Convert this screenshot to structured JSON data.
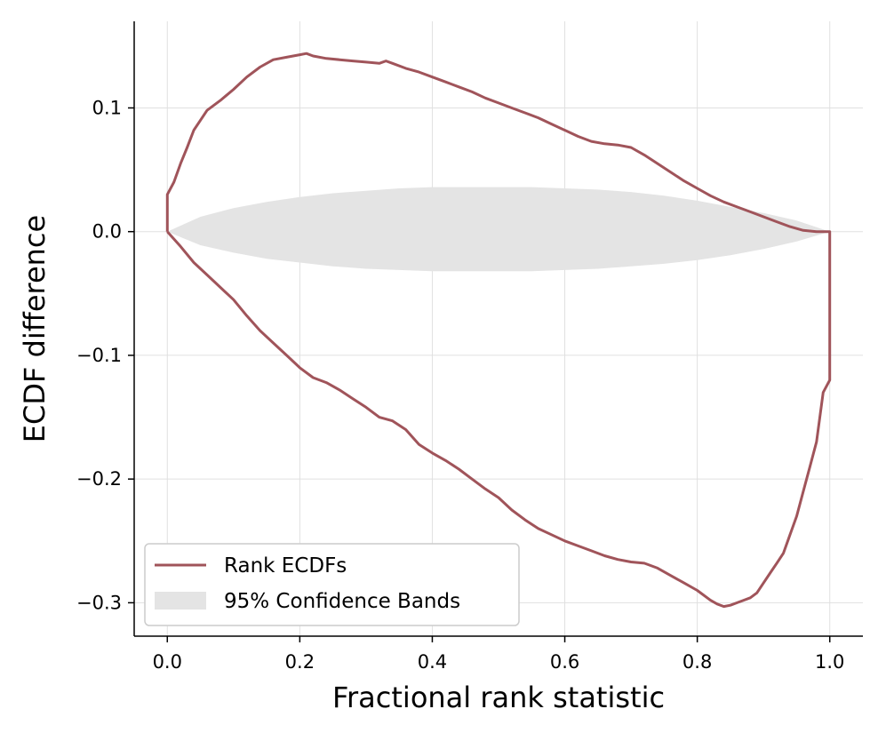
{
  "chart_data": {
    "type": "line",
    "title": "",
    "xlabel": "Fractional rank statistic",
    "ylabel": "ECDF difference",
    "xlim": [
      -0.05,
      1.05
    ],
    "ylim": [
      -0.327,
      0.17
    ],
    "xticks": [
      0.0,
      0.2,
      0.4,
      0.6,
      0.8,
      1.0
    ],
    "xtick_labels": [
      "0.0",
      "0.2",
      "0.4",
      "0.6",
      "0.8",
      "1.0"
    ],
    "yticks": [
      0.1,
      0.0,
      -0.1,
      -0.2,
      -0.3
    ],
    "ytick_labels": [
      "0.1",
      "0.0",
      "−0.1",
      "−0.2",
      "−0.3"
    ],
    "grid": true,
    "legend_position": "lower-left",
    "colors": {
      "line": "#a0545a",
      "band": "#e4e4e4",
      "grid": "#e0e0e0",
      "axis": "#000000"
    },
    "series": [
      {
        "name": "Rank ECDFs",
        "kind": "line",
        "x": [
          0.0,
          0.0,
          0.01,
          0.02,
          0.03,
          0.04,
          0.05,
          0.06,
          0.08,
          0.1,
          0.12,
          0.14,
          0.16,
          0.18,
          0.2,
          0.21,
          0.22,
          0.24,
          0.26,
          0.28,
          0.3,
          0.32,
          0.33,
          0.34,
          0.36,
          0.38,
          0.4,
          0.42,
          0.44,
          0.46,
          0.48,
          0.5,
          0.52,
          0.54,
          0.56,
          0.58,
          0.6,
          0.62,
          0.64,
          0.66,
          0.68,
          0.7,
          0.72,
          0.74,
          0.76,
          0.78,
          0.8,
          0.82,
          0.84,
          0.86,
          0.88,
          0.9,
          0.92,
          0.94,
          0.96,
          0.98,
          1.0,
          1.0,
          0.99,
          0.98,
          0.97,
          0.96,
          0.95,
          0.94,
          0.93,
          0.92,
          0.91,
          0.9,
          0.89,
          0.88,
          0.87,
          0.86,
          0.85,
          0.84,
          0.83,
          0.82,
          0.8,
          0.78,
          0.76,
          0.74,
          0.72,
          0.7,
          0.68,
          0.66,
          0.64,
          0.62,
          0.6,
          0.58,
          0.56,
          0.54,
          0.52,
          0.5,
          0.48,
          0.46,
          0.44,
          0.42,
          0.4,
          0.38,
          0.36,
          0.34,
          0.32,
          0.3,
          0.28,
          0.26,
          0.24,
          0.22,
          0.2,
          0.18,
          0.16,
          0.14,
          0.12,
          0.1,
          0.08,
          0.06,
          0.04,
          0.02,
          0.0
        ],
        "y": [
          0.0,
          0.03,
          0.04,
          0.055,
          0.068,
          0.082,
          0.09,
          0.098,
          0.106,
          0.115,
          0.125,
          0.133,
          0.139,
          0.141,
          0.143,
          0.144,
          0.142,
          0.14,
          0.139,
          0.138,
          0.137,
          0.136,
          0.138,
          0.136,
          0.132,
          0.129,
          0.125,
          0.121,
          0.117,
          0.113,
          0.108,
          0.104,
          0.1,
          0.096,
          0.092,
          0.087,
          0.082,
          0.077,
          0.073,
          0.071,
          0.07,
          0.068,
          0.062,
          0.055,
          0.048,
          0.041,
          0.035,
          0.029,
          0.024,
          0.02,
          0.016,
          0.012,
          0.008,
          0.004,
          0.001,
          0.0,
          0.0,
          -0.12,
          -0.13,
          -0.17,
          -0.19,
          -0.21,
          -0.23,
          -0.245,
          -0.26,
          -0.268,
          -0.276,
          -0.284,
          -0.292,
          -0.296,
          -0.298,
          -0.3,
          -0.302,
          -0.303,
          -0.301,
          -0.298,
          -0.29,
          -0.284,
          -0.278,
          -0.272,
          -0.268,
          -0.267,
          -0.265,
          -0.262,
          -0.258,
          -0.254,
          -0.25,
          -0.245,
          -0.24,
          -0.233,
          -0.225,
          -0.215,
          -0.208,
          -0.2,
          -0.192,
          -0.185,
          -0.179,
          -0.172,
          -0.16,
          -0.153,
          -0.15,
          -0.142,
          -0.135,
          -0.128,
          -0.122,
          -0.118,
          -0.11,
          -0.1,
          -0.09,
          -0.08,
          -0.068,
          -0.055,
          -0.045,
          -0.035,
          -0.025,
          -0.012,
          0.0
        ]
      },
      {
        "name": "95% Confidence Bands",
        "kind": "band",
        "x": [
          0.0,
          0.05,
          0.1,
          0.15,
          0.2,
          0.25,
          0.3,
          0.35,
          0.4,
          0.45,
          0.5,
          0.55,
          0.6,
          0.65,
          0.7,
          0.75,
          0.8,
          0.85,
          0.9,
          0.95,
          1.0
        ],
        "upper": [
          0.0,
          0.012,
          0.019,
          0.024,
          0.028,
          0.031,
          0.033,
          0.035,
          0.036,
          0.036,
          0.036,
          0.036,
          0.035,
          0.034,
          0.032,
          0.029,
          0.025,
          0.02,
          0.015,
          0.009,
          0.0
        ],
        "lower": [
          0.0,
          -0.011,
          -0.017,
          -0.022,
          -0.025,
          -0.028,
          -0.03,
          -0.031,
          -0.032,
          -0.032,
          -0.032,
          -0.032,
          -0.031,
          -0.03,
          -0.028,
          -0.026,
          -0.023,
          -0.019,
          -0.014,
          -0.008,
          0.0
        ]
      }
    ]
  }
}
